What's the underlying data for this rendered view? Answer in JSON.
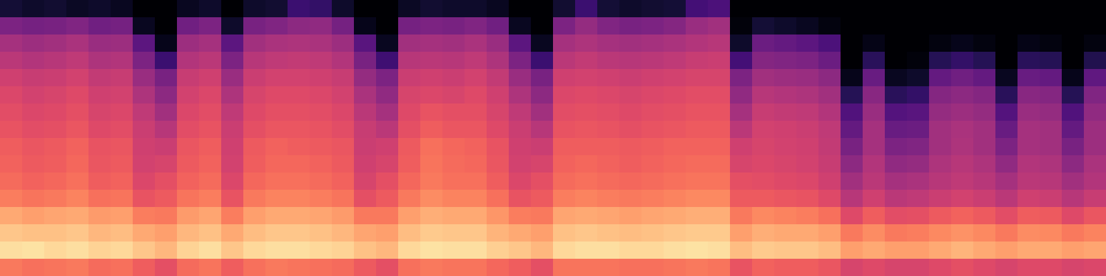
{
  "chart_data": {
    "type": "heatmap",
    "color": "magma",
    "tick_labels": false,
    "zlim": [
      0,
      100
    ],
    "cells": [
      [
        10,
        8,
        9,
        7,
        8,
        6,
        0,
        0,
        6,
        8,
        0,
        8,
        9,
        20,
        18,
        8,
        0,
        0,
        7,
        9,
        8,
        8,
        6,
        0,
        0,
        9,
        20,
        10,
        8,
        9,
        10,
        22,
        24,
        0,
        0,
        0,
        0,
        0,
        0,
        0,
        0,
        0,
        0,
        0,
        0,
        0,
        0,
        0,
        0,
        0
      ],
      [
        36,
        34,
        35,
        37,
        33,
        34,
        6,
        0,
        33,
        36,
        8,
        35,
        37,
        40,
        41,
        34,
        5,
        0,
        34,
        36,
        35,
        37,
        33,
        6,
        0,
        36,
        42,
        37,
        35,
        36,
        38,
        43,
        45,
        2,
        10,
        8,
        6,
        3,
        0,
        0,
        0,
        0,
        0,
        0,
        0,
        0,
        0,
        0,
        0,
        0
      ],
      [
        46,
        44,
        45,
        47,
        43,
        44,
        28,
        5,
        44,
        46,
        28,
        45,
        47,
        48,
        47,
        44,
        27,
        6,
        45,
        46,
        45,
        47,
        43,
        28,
        6,
        46,
        48,
        46,
        45,
        46,
        47,
        49,
        50,
        8,
        32,
        30,
        28,
        24,
        0,
        4,
        0,
        0,
        3,
        5,
        3,
        0,
        4,
        3,
        0,
        3
      ],
      [
        51,
        49,
        50,
        52,
        48,
        49,
        36,
        20,
        49,
        51,
        36,
        50,
        52,
        53,
        52,
        49,
        35,
        21,
        50,
        51,
        50,
        52,
        48,
        36,
        20,
        51,
        53,
        51,
        50,
        51,
        52,
        54,
        55,
        22,
        38,
        37,
        36,
        32,
        0,
        16,
        0,
        2,
        15,
        18,
        15,
        0,
        16,
        15,
        0,
        14
      ],
      [
        56,
        54,
        55,
        57,
        53,
        54,
        43,
        35,
        54,
        56,
        43,
        55,
        57,
        57,
        56,
        54,
        42,
        36,
        55,
        56,
        55,
        57,
        53,
        43,
        35,
        56,
        57,
        56,
        55,
        56,
        57,
        58,
        58,
        36,
        45,
        44,
        43,
        40,
        5,
        31,
        6,
        8,
        30,
        33,
        30,
        6,
        31,
        30,
        5,
        29
      ],
      [
        59,
        57,
        58,
        60,
        56,
        57,
        48,
        40,
        57,
        59,
        48,
        58,
        60,
        60,
        59,
        57,
        47,
        41,
        58,
        59,
        58,
        60,
        56,
        48,
        40,
        59,
        60,
        59,
        58,
        59,
        60,
        61,
        61,
        41,
        50,
        49,
        48,
        45,
        15,
        39,
        16,
        18,
        38,
        40,
        38,
        16,
        39,
        38,
        15,
        37
      ],
      [
        61,
        59,
        60,
        62,
        58,
        59,
        52,
        45,
        59,
        61,
        52,
        60,
        62,
        62,
        61,
        59,
        51,
        46,
        60,
        63,
        62,
        62,
        58,
        52,
        45,
        61,
        62,
        61,
        60,
        61,
        62,
        63,
        63,
        46,
        54,
        53,
        52,
        49,
        25,
        43,
        26,
        27,
        42,
        44,
        42,
        26,
        43,
        42,
        25,
        41
      ],
      [
        63,
        61,
        62,
        64,
        60,
        61,
        55,
        50,
        61,
        63,
        55,
        62,
        64,
        64,
        63,
        61,
        54,
        51,
        62,
        66,
        64,
        64,
        60,
        55,
        50,
        63,
        64,
        63,
        62,
        63,
        64,
        65,
        65,
        51,
        57,
        56,
        55,
        52,
        30,
        46,
        31,
        32,
        45,
        47,
        45,
        31,
        46,
        45,
        30,
        44
      ],
      [
        66,
        64,
        65,
        67,
        63,
        64,
        56,
        55,
        64,
        66,
        56,
        65,
        67,
        66,
        65,
        64,
        55,
        56,
        65,
        70,
        68,
        67,
        63,
        56,
        55,
        66,
        66,
        66,
        65,
        66,
        67,
        67,
        67,
        56,
        58,
        57,
        56,
        53,
        35,
        46,
        36,
        37,
        45,
        48,
        45,
        36,
        46,
        45,
        35,
        44
      ],
      [
        67,
        65,
        66,
        68,
        64,
        65,
        57,
        58,
        65,
        67,
        57,
        66,
        68,
        68,
        67,
        65,
        56,
        58,
        66,
        71,
        69,
        68,
        64,
        57,
        58,
        67,
        68,
        67,
        66,
        67,
        68,
        69,
        69,
        58,
        59,
        58,
        57,
        54,
        40,
        49,
        41,
        42,
        48,
        50,
        48,
        41,
        49,
        48,
        40,
        47
      ],
      [
        69,
        67,
        68,
        70,
        66,
        67,
        59,
        62,
        67,
        69,
        59,
        68,
        70,
        70,
        69,
        67,
        58,
        62,
        68,
        72,
        70,
        70,
        66,
        59,
        62,
        69,
        70,
        69,
        68,
        69,
        70,
        71,
        71,
        62,
        61,
        60,
        59,
        56,
        45,
        51,
        46,
        47,
        50,
        52,
        50,
        46,
        51,
        50,
        45,
        49
      ],
      [
        73,
        71,
        72,
        74,
        70,
        71,
        63,
        65,
        71,
        73,
        63,
        72,
        74,
        74,
        73,
        71,
        62,
        65,
        72,
        76,
        74,
        74,
        70,
        63,
        65,
        73,
        74,
        73,
        72,
        73,
        74,
        75,
        75,
        65,
        65,
        64,
        63,
        60,
        50,
        56,
        51,
        52,
        55,
        57,
        55,
        51,
        56,
        55,
        50,
        54
      ],
      [
        82,
        80,
        81,
        82,
        79,
        80,
        73,
        72,
        79,
        81,
        73,
        80,
        82,
        82,
        81,
        79,
        72,
        72,
        80,
        83,
        82,
        82,
        78,
        73,
        72,
        81,
        82,
        81,
        80,
        81,
        82,
        83,
        83,
        72,
        75,
        74,
        73,
        70,
        60,
        66,
        61,
        62,
        65,
        67,
        65,
        61,
        66,
        65,
        60,
        64
      ],
      [
        88,
        87,
        87,
        88,
        85,
        86,
        82,
        80,
        85,
        87,
        82,
        86,
        88,
        88,
        87,
        85,
        81,
        80,
        86,
        89,
        88,
        88,
        84,
        82,
        80,
        87,
        88,
        87,
        86,
        87,
        88,
        89,
        89,
        80,
        83,
        82,
        82,
        80,
        72,
        76,
        72,
        73,
        75,
        77,
        75,
        72,
        76,
        75,
        72,
        74
      ],
      [
        93,
        94,
        92,
        93,
        91,
        92,
        88,
        85,
        91,
        93,
        88,
        92,
        93,
        93,
        92,
        91,
        87,
        85,
        92,
        94,
        93,
        93,
        90,
        88,
        85,
        92,
        93,
        93,
        92,
        92,
        93,
        94,
        93,
        86,
        89,
        88,
        88,
        86,
        80,
        82,
        80,
        80,
        82,
        84,
        82,
        80,
        82,
        82,
        80,
        81
      ],
      [
        72,
        70,
        71,
        72,
        69,
        70,
        66,
        62,
        69,
        71,
        66,
        70,
        72,
        71,
        70,
        69,
        65,
        62,
        70,
        72,
        71,
        71,
        68,
        66,
        62,
        71,
        71,
        71,
        70,
        70,
        71,
        72,
        71,
        63,
        67,
        66,
        66,
        64,
        58,
        60,
        58,
        58,
        60,
        62,
        60,
        58,
        60,
        60,
        58,
        59
      ]
    ]
  }
}
